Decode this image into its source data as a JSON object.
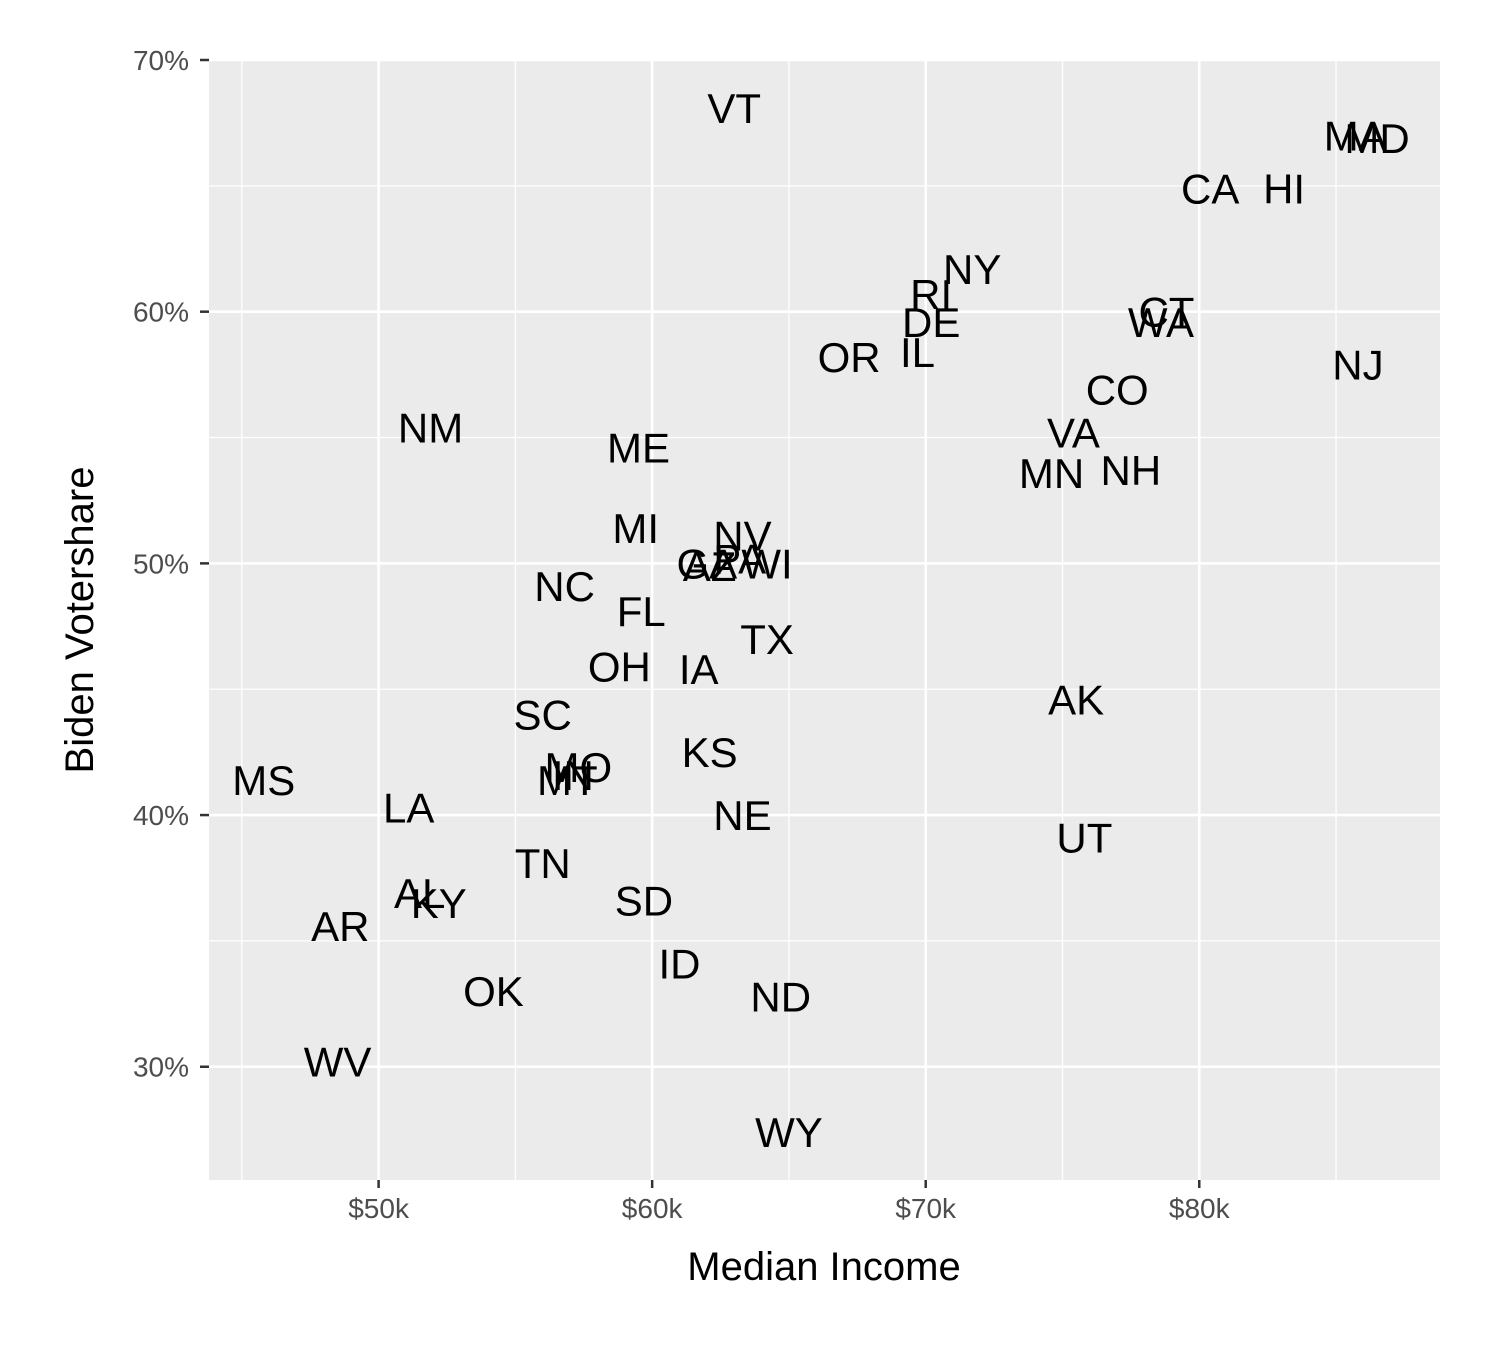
{
  "chart_data": {
    "type": "scatter",
    "xlabel": "Median Income",
    "ylabel": "Biden Votershare",
    "xlim": [
      43800,
      88800
    ],
    "ylim": [
      0.255,
      0.7
    ],
    "x_ticks": [
      {
        "value": 50000,
        "label": "$50k"
      },
      {
        "value": 60000,
        "label": "$60k"
      },
      {
        "value": 70000,
        "label": "$70k"
      },
      {
        "value": 80000,
        "label": "$80k"
      }
    ],
    "y_ticks": [
      {
        "value": 0.3,
        "label": "30%"
      },
      {
        "value": 0.4,
        "label": "40%"
      },
      {
        "value": 0.5,
        "label": "50%"
      },
      {
        "value": 0.6,
        "label": "60%"
      },
      {
        "value": 0.7,
        "label": "70%"
      }
    ],
    "points": [
      {
        "label": "VT",
        "x": 63000,
        "y": 0.681
      },
      {
        "label": "MA",
        "x": 85700,
        "y": 0.67
      },
      {
        "label": "MD",
        "x": 86500,
        "y": 0.669
      },
      {
        "label": "CA",
        "x": 80400,
        "y": 0.649
      },
      {
        "label": "HI",
        "x": 83100,
        "y": 0.649
      },
      {
        "label": "NY",
        "x": 71700,
        "y": 0.617
      },
      {
        "label": "RI",
        "x": 70200,
        "y": 0.607
      },
      {
        "label": "DE",
        "x": 70200,
        "y": 0.596
      },
      {
        "label": "CT",
        "x": 78800,
        "y": 0.6
      },
      {
        "label": "WA",
        "x": 78600,
        "y": 0.596
      },
      {
        "label": "IL",
        "x": 69700,
        "y": 0.584
      },
      {
        "label": "OR",
        "x": 67200,
        "y": 0.582
      },
      {
        "label": "NJ",
        "x": 85800,
        "y": 0.579
      },
      {
        "label": "CO",
        "x": 77000,
        "y": 0.569
      },
      {
        "label": "NM",
        "x": 51900,
        "y": 0.554
      },
      {
        "label": "ME",
        "x": 59500,
        "y": 0.546
      },
      {
        "label": "VA",
        "x": 75400,
        "y": 0.552
      },
      {
        "label": "MN",
        "x": 74600,
        "y": 0.536
      },
      {
        "label": "NH",
        "x": 77500,
        "y": 0.537
      },
      {
        "label": "MI",
        "x": 59400,
        "y": 0.514
      },
      {
        "label": "NV",
        "x": 63300,
        "y": 0.511
      },
      {
        "label": "PA",
        "x": 63200,
        "y": 0.502
      },
      {
        "label": "WI",
        "x": 64200,
        "y": 0.5
      },
      {
        "label": "GA",
        "x": 62000,
        "y": 0.5
      },
      {
        "label": "AZ",
        "x": 62100,
        "y": 0.499
      },
      {
        "label": "NC",
        "x": 56800,
        "y": 0.491
      },
      {
        "label": "FL",
        "x": 59600,
        "y": 0.481
      },
      {
        "label": "TX",
        "x": 64200,
        "y": 0.47
      },
      {
        "label": "OH",
        "x": 58800,
        "y": 0.459
      },
      {
        "label": "IA",
        "x": 61700,
        "y": 0.458
      },
      {
        "label": "AK",
        "x": 75500,
        "y": 0.446
      },
      {
        "label": "SC",
        "x": 56000,
        "y": 0.44
      },
      {
        "label": "KS",
        "x": 62100,
        "y": 0.425
      },
      {
        "label": "MO",
        "x": 57300,
        "y": 0.419
      },
      {
        "label": "IN",
        "x": 57100,
        "y": 0.416
      },
      {
        "label": "MT",
        "x": 56900,
        "y": 0.414
      },
      {
        "label": "MS",
        "x": 45800,
        "y": 0.414
      },
      {
        "label": "LA",
        "x": 51100,
        "y": 0.403
      },
      {
        "label": "NE",
        "x": 63300,
        "y": 0.4
      },
      {
        "label": "UT",
        "x": 75800,
        "y": 0.391
      },
      {
        "label": "TN",
        "x": 56000,
        "y": 0.381
      },
      {
        "label": "AL",
        "x": 51500,
        "y": 0.369
      },
      {
        "label": "KY",
        "x": 52200,
        "y": 0.365
      },
      {
        "label": "SD",
        "x": 59700,
        "y": 0.366
      },
      {
        "label": "AR",
        "x": 48600,
        "y": 0.356
      },
      {
        "label": "ID",
        "x": 61000,
        "y": 0.341
      },
      {
        "label": "ND",
        "x": 64700,
        "y": 0.328
      },
      {
        "label": "OK",
        "x": 54200,
        "y": 0.33
      },
      {
        "label": "WV",
        "x": 48500,
        "y": 0.302
      },
      {
        "label": "WY",
        "x": 65000,
        "y": 0.274
      }
    ]
  }
}
